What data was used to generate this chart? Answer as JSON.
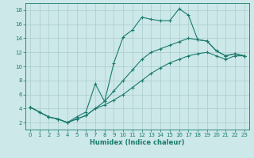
{
  "title": "",
  "xlabel": "Humidex (Indice chaleur)",
  "bg_color": "#cce8e8",
  "grid_color": "#aacccc",
  "line_color": "#1a7a6e",
  "xlim": [
    -0.5,
    23.5
  ],
  "ylim": [
    1,
    19
  ],
  "xticks": [
    0,
    1,
    2,
    3,
    4,
    5,
    6,
    7,
    8,
    9,
    10,
    11,
    12,
    13,
    14,
    15,
    16,
    17,
    18,
    19,
    20,
    21,
    22,
    23
  ],
  "yticks": [
    2,
    4,
    6,
    8,
    10,
    12,
    14,
    16,
    18
  ],
  "line1_x": [
    0,
    1,
    2,
    3,
    4,
    5,
    6,
    7,
    8,
    9,
    10,
    11,
    12,
    13,
    14,
    15,
    16,
    17,
    18,
    19,
    20,
    21,
    22,
    23
  ],
  "line1_y": [
    4.2,
    3.5,
    2.8,
    2.5,
    2.0,
    2.5,
    3.0,
    4.0,
    5.0,
    10.5,
    14.2,
    15.2,
    17.0,
    16.7,
    16.5,
    16.5,
    18.2,
    17.3,
    13.8,
    13.6,
    12.2,
    11.5,
    11.8,
    11.5
  ],
  "line2_x": [
    0,
    1,
    2,
    3,
    4,
    5,
    6,
    7,
    8,
    9,
    10,
    11,
    12,
    13,
    14,
    15,
    16,
    17,
    18,
    19,
    20,
    21,
    22,
    23
  ],
  "line2_y": [
    4.2,
    3.5,
    2.8,
    2.5,
    2.0,
    2.8,
    3.5,
    7.5,
    5.0,
    6.5,
    8.0,
    9.5,
    11.0,
    12.0,
    12.5,
    13.0,
    13.5,
    14.0,
    13.8,
    13.6,
    12.2,
    11.5,
    11.8,
    11.5
  ],
  "line3_x": [
    0,
    1,
    2,
    3,
    4,
    5,
    6,
    7,
    8,
    9,
    10,
    11,
    12,
    13,
    14,
    15,
    16,
    17,
    18,
    19,
    20,
    21,
    22,
    23
  ],
  "line3_y": [
    4.2,
    3.5,
    2.8,
    2.5,
    2.0,
    2.5,
    3.0,
    4.0,
    4.5,
    5.2,
    6.0,
    7.0,
    8.0,
    9.0,
    9.8,
    10.5,
    11.0,
    11.5,
    11.8,
    12.0,
    11.5,
    11.0,
    11.5,
    11.5
  ]
}
